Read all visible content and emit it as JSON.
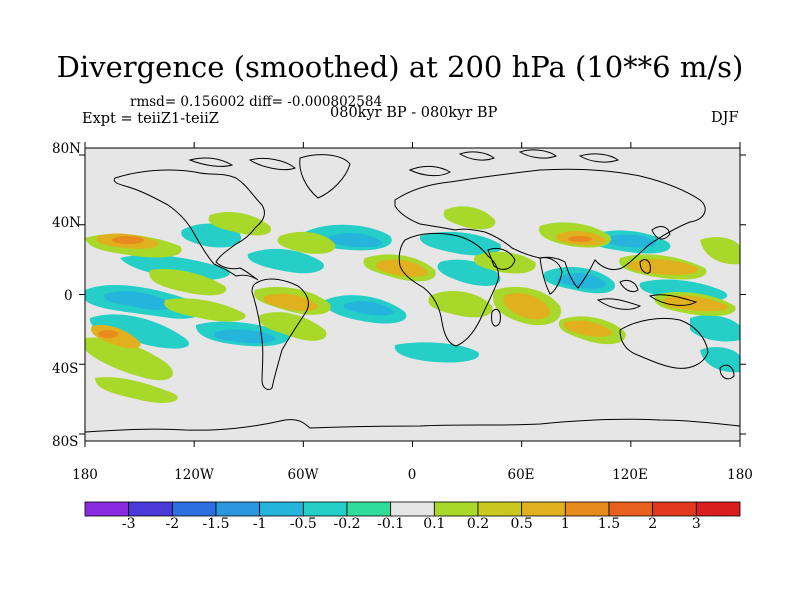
{
  "title": "Divergence (smoothed) at 200 hPa (10**6 m/s)",
  "stats_line": "rmsd= 0.156002 diff= -0.000802584",
  "experiment": "Expt = teiiZ1-teiiZ",
  "period": "080kyr BP - 080kyr BP",
  "season": "DJF",
  "lat_labels": [
    "80N",
    "40N",
    "0",
    "40S",
    "80S"
  ],
  "lon_labels": [
    "180",
    "120W",
    "60W",
    "0",
    "60E",
    "120E",
    "180"
  ],
  "colorbar": {
    "labels": [
      "-3",
      "-2",
      "-1.5",
      "-1",
      "-0.5",
      "-0.2",
      "-0.1",
      "0.1",
      "0.2",
      "0.5",
      "1",
      "1.5",
      "2",
      "3"
    ],
    "colors": [
      "#8a2be2",
      "#4a3ad8",
      "#2d6ee0",
      "#2a96e0",
      "#24b4dc",
      "#25cfc8",
      "#2fdc9a",
      "#e6e6e6",
      "#a8d82a",
      "#c8c81e",
      "#e0b01e",
      "#e88a1e",
      "#e8601e",
      "#e2381e",
      "#d81e1e"
    ]
  },
  "background_color": "#e6e6e6"
}
